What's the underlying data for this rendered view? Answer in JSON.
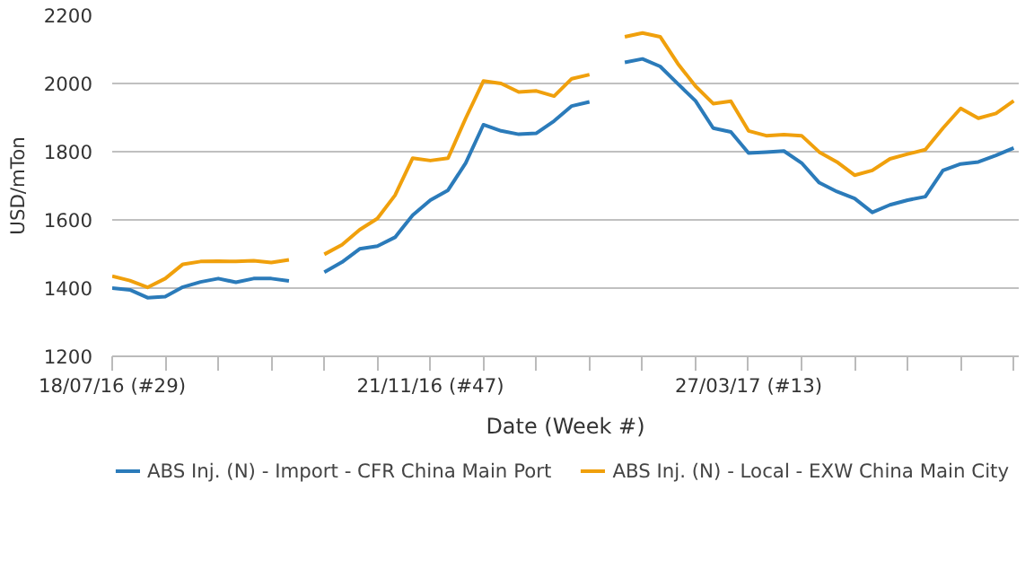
{
  "chart_data": {
    "type": "line",
    "xlabel": "Date (Week #)",
    "ylabel": "USD/mTon",
    "x": [
      "2016-07-18",
      "2016-07-25",
      "2016-08-01",
      "2016-08-08",
      "2016-08-15",
      "2016-08-22",
      "2016-08-29",
      "2016-09-05",
      "2016-09-12",
      "2016-09-19",
      "2016-09-26",
      "2016-10-03",
      "2016-10-10",
      "2016-10-17",
      "2016-10-24",
      "2016-10-31",
      "2016-11-07",
      "2016-11-14",
      "2016-11-21",
      "2016-11-28",
      "2016-12-05",
      "2016-12-12",
      "2016-12-19",
      "2016-12-26",
      "2017-01-02",
      "2017-01-09",
      "2017-01-16",
      "2017-01-23",
      "2017-01-30",
      "2017-02-06",
      "2017-02-13",
      "2017-02-20",
      "2017-02-27",
      "2017-03-06",
      "2017-03-13",
      "2017-03-20",
      "2017-03-27",
      "2017-04-03",
      "2017-04-10",
      "2017-04-17",
      "2017-04-24",
      "2017-05-01",
      "2017-05-08",
      "2017-05-15",
      "2017-05-22",
      "2017-05-29",
      "2017-06-05",
      "2017-06-12",
      "2017-06-19",
      "2017-06-26",
      "2017-07-03",
      "2017-07-10"
    ],
    "series": [
      {
        "name": "ABS Inj. (N) - Import - CFR China Main Port",
        "color": "#2b7bba",
        "values": [
          1400,
          1395,
          1372,
          1375,
          1403,
          1418,
          1428,
          1417,
          1428,
          1428,
          1421,
          null,
          1447,
          1476,
          1515,
          1523,
          1549,
          1614,
          1658,
          1687,
          1767,
          1879,
          1861,
          1851,
          1854,
          1890,
          1934,
          1946,
          null,
          2062,
          2072,
          2050,
          1999,
          1949,
          1869,
          1858,
          1796,
          1799,
          1802,
          1767,
          1709,
          1683,
          1663,
          1622,
          1644,
          1658,
          1668,
          1745,
          1764,
          1770,
          1789,
          1811
        ]
      },
      {
        "name": "ABS Inj. (N) - Local - EXW China Main City",
        "color": "#f0a00c",
        "values": [
          1435,
          1422,
          1402,
          1428,
          1470,
          1478,
          1479,
          1478,
          1480,
          1475,
          1483,
          null,
          1499,
          1527,
          1571,
          1604,
          1672,
          1781,
          1774,
          1781,
          1898,
          2007,
          2000,
          1975,
          1978,
          1963,
          2014,
          2026,
          null,
          2137,
          2148,
          2137,
          2058,
          1992,
          1941,
          1948,
          1861,
          1847,
          1850,
          1847,
          1799,
          1770,
          1731,
          1745,
          1779,
          1793,
          1806,
          1869,
          1927,
          1898,
          1912,
          1949
        ]
      }
    ],
    "xlim": [
      "2016-07-18",
      "2017-07-12"
    ],
    "xticks": [
      {
        "value": "2016-07-18",
        "label": "18/07/16 (#29)"
      },
      {
        "value": "2016-08-08",
        "label": null
      },
      {
        "value": "2016-08-29",
        "label": null
      },
      {
        "value": "2016-09-19",
        "label": null
      },
      {
        "value": "2016-10-10",
        "label": null
      },
      {
        "value": "2016-10-31",
        "label": null
      },
      {
        "value": "2016-11-21",
        "label": "21/11/16 (#47)"
      },
      {
        "value": "2016-12-12",
        "label": null
      },
      {
        "value": "2017-01-02",
        "label": null
      },
      {
        "value": "2017-01-23",
        "label": null
      },
      {
        "value": "2017-02-13",
        "label": null
      },
      {
        "value": "2017-03-06",
        "label": null
      },
      {
        "value": "2017-03-27",
        "label": "27/03/17 (#13)"
      },
      {
        "value": "2017-04-17",
        "label": null
      },
      {
        "value": "2017-05-08",
        "label": null
      },
      {
        "value": "2017-05-29",
        "label": null
      },
      {
        "value": "2017-06-19",
        "label": null
      },
      {
        "value": "2017-07-10",
        "label": null
      }
    ],
    "ylim": [
      1200,
      2200
    ],
    "yticks": [
      1200,
      1400,
      1600,
      1800,
      2000,
      2200
    ],
    "grid": "y",
    "legend": "bottom",
    "marker": "none",
    "line_style": "solid"
  }
}
